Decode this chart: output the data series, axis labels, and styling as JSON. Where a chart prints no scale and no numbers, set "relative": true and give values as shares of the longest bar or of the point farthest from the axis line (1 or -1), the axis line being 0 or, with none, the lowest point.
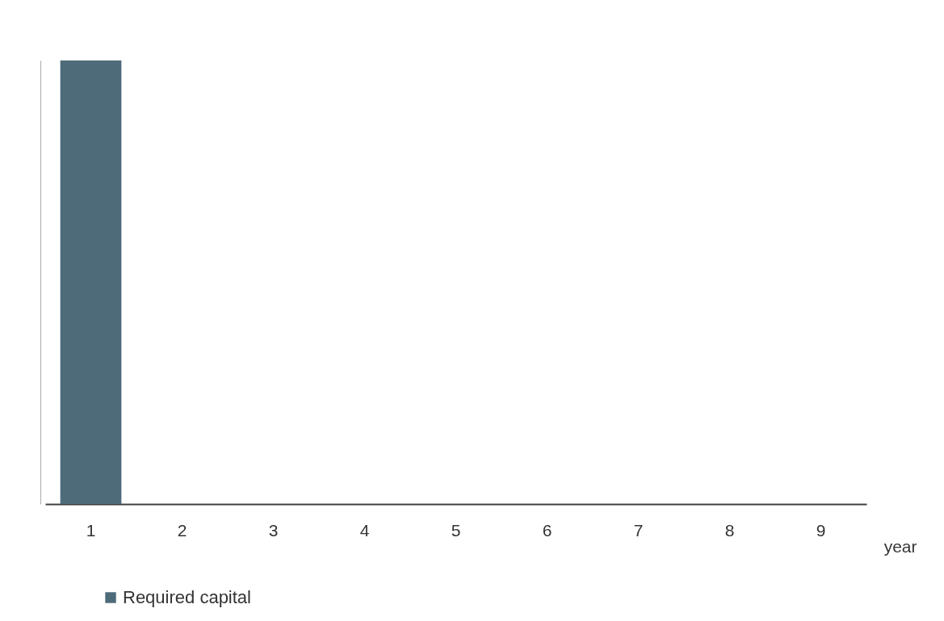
{
  "chart_data": {
    "type": "bar",
    "xlabel": "year",
    "categories": [
      "1",
      "2",
      "3",
      "4",
      "5",
      "6",
      "7",
      "8",
      "9"
    ],
    "series": [
      {
        "name": "Required capital",
        "color": "#4e6b79",
        "values": [
          1,
          0,
          0,
          0,
          0,
          0,
          0,
          0,
          0
        ]
      }
    ],
    "relative": true,
    "legend": "bottom left",
    "grid": false
  }
}
